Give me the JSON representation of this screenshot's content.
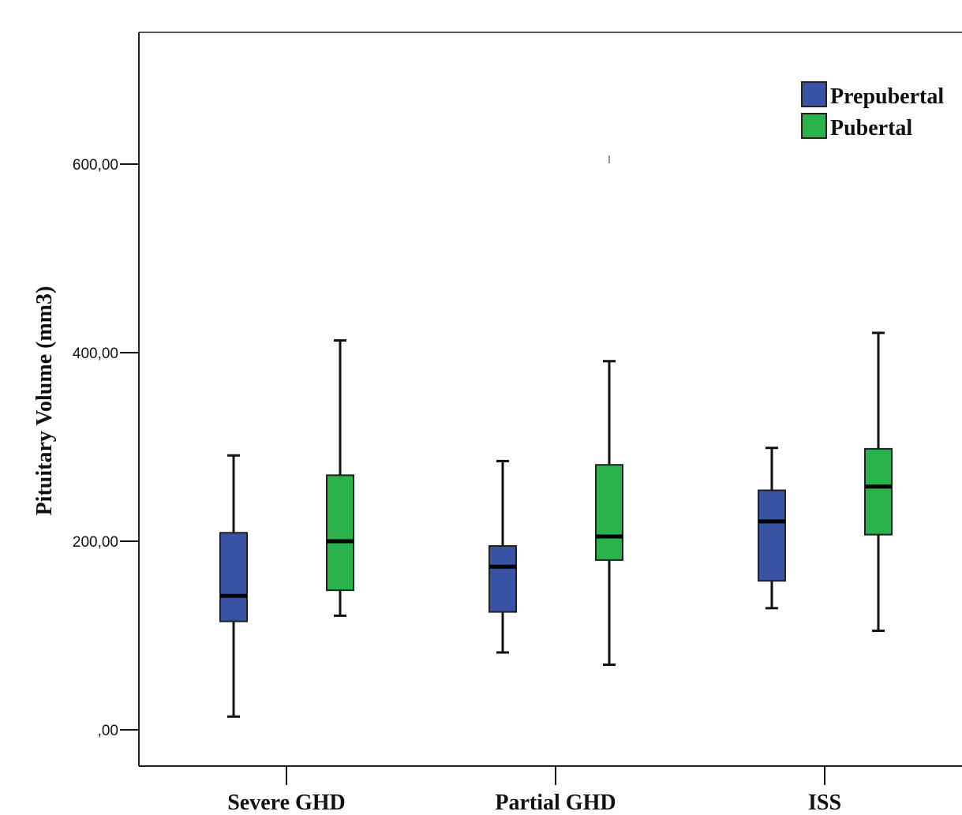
{
  "chart_data": {
    "type": "boxplot",
    "ylabel": "Pituitary Volume (mm3)",
    "xlabel": "",
    "ylim": [
      -40,
      740
    ],
    "y_ticks": [
      {
        "value": 0,
        "label": ",00"
      },
      {
        "value": 200,
        "label": "200,00"
      },
      {
        "value": 400,
        "label": "400,00"
      },
      {
        "value": 600,
        "label": "600,00"
      }
    ],
    "categories": [
      "Severe GHD",
      "Partial GHD",
      "ISS"
    ],
    "legend_position": "top-right",
    "series": [
      {
        "name": "Prepubertal",
        "color": "#3953a4",
        "boxes": [
          {
            "min": 14,
            "q1": 115,
            "median": 142,
            "q3": 209,
            "max": 291
          },
          {
            "min": 82,
            "q1": 125,
            "median": 173,
            "q3": 195,
            "max": 285
          },
          {
            "min": 129,
            "q1": 158,
            "median": 221,
            "q3": 254,
            "max": 299
          }
        ]
      },
      {
        "name": "Pubertal",
        "color": "#2ab34a",
        "boxes": [
          {
            "min": 121,
            "q1": 148,
            "median": 200,
            "q3": 270,
            "max": 413
          },
          {
            "min": 69,
            "q1": 180,
            "median": 205,
            "q3": 281,
            "max": 391
          },
          {
            "min": 105,
            "q1": 207,
            "median": 258,
            "q3": 298,
            "max": 421
          }
        ]
      }
    ],
    "outliers": [
      {
        "series": "Pubertal",
        "category": "Partial GHD",
        "value": 605
      }
    ]
  }
}
